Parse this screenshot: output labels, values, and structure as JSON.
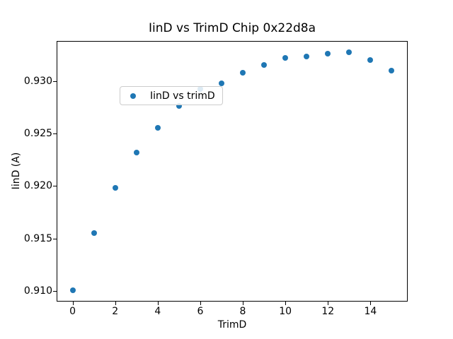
{
  "chart_data": {
    "type": "scatter",
    "title": "IinD vs TrimD Chip 0x22d8a",
    "xlabel": "TrimD",
    "ylabel": "IinD (A)",
    "series_name": "IinD vs trimD",
    "marker_color": "#1f77b4",
    "legend_position": "upper left",
    "grid": false,
    "x": [
      0,
      1,
      2,
      3,
      4,
      5,
      6,
      7,
      8,
      9,
      10,
      11,
      12,
      13,
      14,
      15
    ],
    "y": [
      0.9101,
      0.9155,
      0.9198,
      0.9232,
      0.9255,
      0.9276,
      0.9292,
      0.9298,
      0.9308,
      0.9315,
      0.9322,
      0.9323,
      0.9326,
      0.9327,
      0.932,
      0.931
    ],
    "xlim": [
      -0.75,
      15.75
    ],
    "ylim": [
      0.909,
      0.9338
    ],
    "xtick_values": [
      0,
      2,
      4,
      6,
      8,
      10,
      12,
      14
    ],
    "xtick_labels": [
      "0",
      "2",
      "4",
      "6",
      "8",
      "10",
      "12",
      "14"
    ],
    "ytick_values": [
      0.91,
      0.915,
      0.92,
      0.925,
      0.93
    ],
    "ytick_labels": [
      "0.910",
      "0.915",
      "0.920",
      "0.925",
      "0.930"
    ]
  }
}
